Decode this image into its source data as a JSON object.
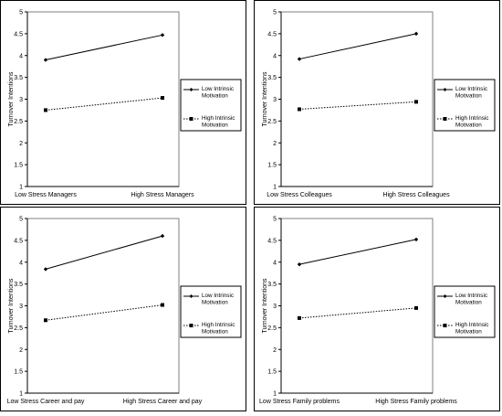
{
  "chart_data": [
    {
      "type": "line",
      "ylabel": "Turnover Intentions",
      "ylim": [
        1,
        5
      ],
      "yticks": [
        "1",
        "1.5",
        "2",
        "2.5",
        "3",
        "3.5",
        "4",
        "4.5",
        "5"
      ],
      "categories": [
        "Low Stress Managers",
        "High Stress Managers"
      ],
      "series": [
        {
          "name": "Low Intrinsic Motivation",
          "values": [
            3.9,
            4.47
          ],
          "style": "solid",
          "marker": "diamond"
        },
        {
          "name": "High Intrinsic Motivation",
          "values": [
            2.75,
            3.03
          ],
          "style": "dotted",
          "marker": "square"
        }
      ],
      "legend": "right"
    },
    {
      "type": "line",
      "ylabel": "Turnover Intentions",
      "ylim": [
        1,
        5
      ],
      "yticks": [
        "1",
        "1.5",
        "2",
        "2.5",
        "3",
        "3.5",
        "4",
        "4.5",
        "5"
      ],
      "categories": [
        "Low Stress Colleagues",
        "High Stress Colleagues"
      ],
      "series": [
        {
          "name": "Low Intrinsic Motivation",
          "values": [
            3.92,
            4.5
          ],
          "style": "solid",
          "marker": "diamond"
        },
        {
          "name": "High Intrinsic Motivation",
          "values": [
            2.77,
            2.94
          ],
          "style": "dotted",
          "marker": "square"
        }
      ],
      "legend": "right"
    },
    {
      "type": "line",
      "ylabel": "Turnover Intentions",
      "ylim": [
        1,
        5
      ],
      "yticks": [
        "1",
        "1.5",
        "2",
        "2.5",
        "3",
        "3.5",
        "4",
        "4.5",
        "5"
      ],
      "categories": [
        "Low Stress Career and pay",
        "High Stress Career and pay"
      ],
      "series": [
        {
          "name": "Low Intrinsic Motivation",
          "values": [
            3.84,
            4.6
          ],
          "style": "solid",
          "marker": "diamond"
        },
        {
          "name": "High Intrinsic Motivation",
          "values": [
            2.67,
            3.02
          ],
          "style": "dotted",
          "marker": "square"
        }
      ],
      "legend": "right"
    },
    {
      "type": "line",
      "ylabel": "Turnover Intentions",
      "ylim": [
        1,
        5
      ],
      "yticks": [
        "1",
        "1.5",
        "2",
        "2.5",
        "3",
        "3.5",
        "4",
        "4.5",
        "5"
      ],
      "categories": [
        "Low Stress Family problems",
        "High Stress Family problems"
      ],
      "series": [
        {
          "name": "Low Intrinsic Motivation",
          "values": [
            3.95,
            4.52
          ],
          "style": "solid",
          "marker": "diamond"
        },
        {
          "name": "High Intrinsic Motivation",
          "values": [
            2.72,
            2.95
          ],
          "style": "dotted",
          "marker": "square"
        }
      ],
      "legend": "right"
    }
  ]
}
